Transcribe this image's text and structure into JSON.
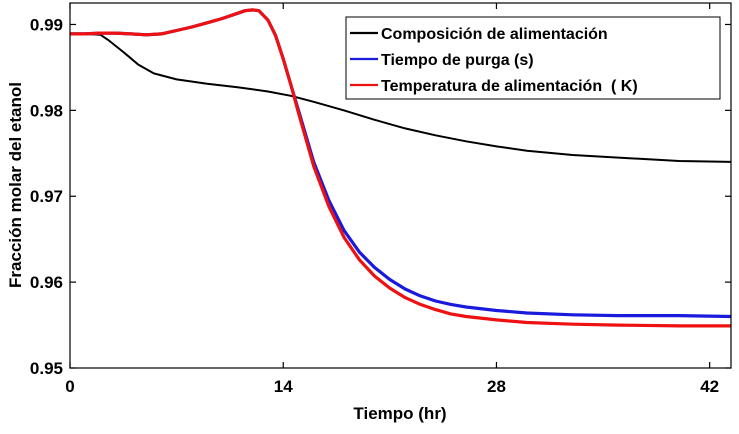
{
  "chart_data": {
    "type": "line",
    "title": "",
    "xlabel": "Tiempo (hr)",
    "ylabel": "Fracción molar del etanol",
    "xlim": [
      0,
      43.4
    ],
    "ylim": [
      0.95,
      0.9925
    ],
    "xticks": [
      0,
      14,
      28,
      42
    ],
    "xtick_labels": [
      "0",
      "14",
      "28",
      "42"
    ],
    "yticks": [
      0.95,
      0.96,
      0.97,
      0.98,
      0.99
    ],
    "ytick_labels": [
      "0.95",
      "0.96",
      "0.97",
      "0.98",
      "0.99"
    ],
    "grid": false,
    "legend_position": "top-right",
    "series": [
      {
        "name": "Composición de alimentación",
        "color": "#000000",
        "x": [
          0,
          1,
          2,
          2.5,
          3.5,
          4.5,
          5.5,
          7,
          9,
          11,
          13,
          14.5,
          16,
          18,
          20,
          22,
          24,
          26,
          28,
          30,
          33,
          36,
          40,
          43.4
        ],
        "y": [
          0.9889,
          0.9889,
          0.9888,
          0.9882,
          0.9868,
          0.9853,
          0.9843,
          0.9836,
          0.9831,
          0.9827,
          0.9822,
          0.9817,
          0.981,
          0.98,
          0.9789,
          0.9779,
          0.9771,
          0.9764,
          0.9758,
          0.9753,
          0.9748,
          0.9745,
          0.9741,
          0.974
        ]
      },
      {
        "name": "Tiempo de purga (s)",
        "color": "#1a1adc",
        "x": [
          0,
          1,
          2,
          3,
          4,
          5,
          6,
          7,
          8,
          9,
          10,
          11,
          11.5,
          12,
          12.4,
          13,
          13.5,
          14,
          14.5,
          15,
          16,
          17,
          18,
          19,
          20,
          21,
          22,
          23,
          24,
          25,
          26,
          28,
          30,
          33,
          36,
          40,
          43.4
        ],
        "y": [
          0.9889,
          0.9889,
          0.989,
          0.989,
          0.9889,
          0.9888,
          0.9889,
          0.9893,
          0.9897,
          0.9902,
          0.9907,
          0.9913,
          0.9916,
          0.9917,
          0.9916,
          0.9905,
          0.9887,
          0.986,
          0.983,
          0.98,
          0.974,
          0.9695,
          0.966,
          0.9635,
          0.9617,
          0.9603,
          0.9592,
          0.9584,
          0.9578,
          0.9574,
          0.9571,
          0.9567,
          0.9564,
          0.9562,
          0.9561,
          0.9561,
          0.956
        ]
      },
      {
        "name": "Temperatura de alimentación  ( K)",
        "color": "#ee1111",
        "x": [
          0,
          1,
          2,
          3,
          4,
          5,
          6,
          7,
          8,
          9,
          10,
          11,
          11.5,
          12,
          12.4,
          13,
          13.5,
          14,
          14.5,
          15,
          16,
          17,
          18,
          19,
          20,
          21,
          22,
          23,
          24,
          25,
          26,
          28,
          30,
          33,
          36,
          40,
          43.4
        ],
        "y": [
          0.9889,
          0.9889,
          0.989,
          0.989,
          0.9889,
          0.9888,
          0.9889,
          0.9893,
          0.9897,
          0.9902,
          0.9907,
          0.9913,
          0.9916,
          0.9917,
          0.9916,
          0.9905,
          0.9887,
          0.986,
          0.983,
          0.9797,
          0.9735,
          0.9688,
          0.9652,
          0.9626,
          0.9607,
          0.9593,
          0.9582,
          0.9574,
          0.9568,
          0.9563,
          0.956,
          0.9556,
          0.9553,
          0.9551,
          0.955,
          0.9549,
          0.9549
        ]
      }
    ]
  }
}
